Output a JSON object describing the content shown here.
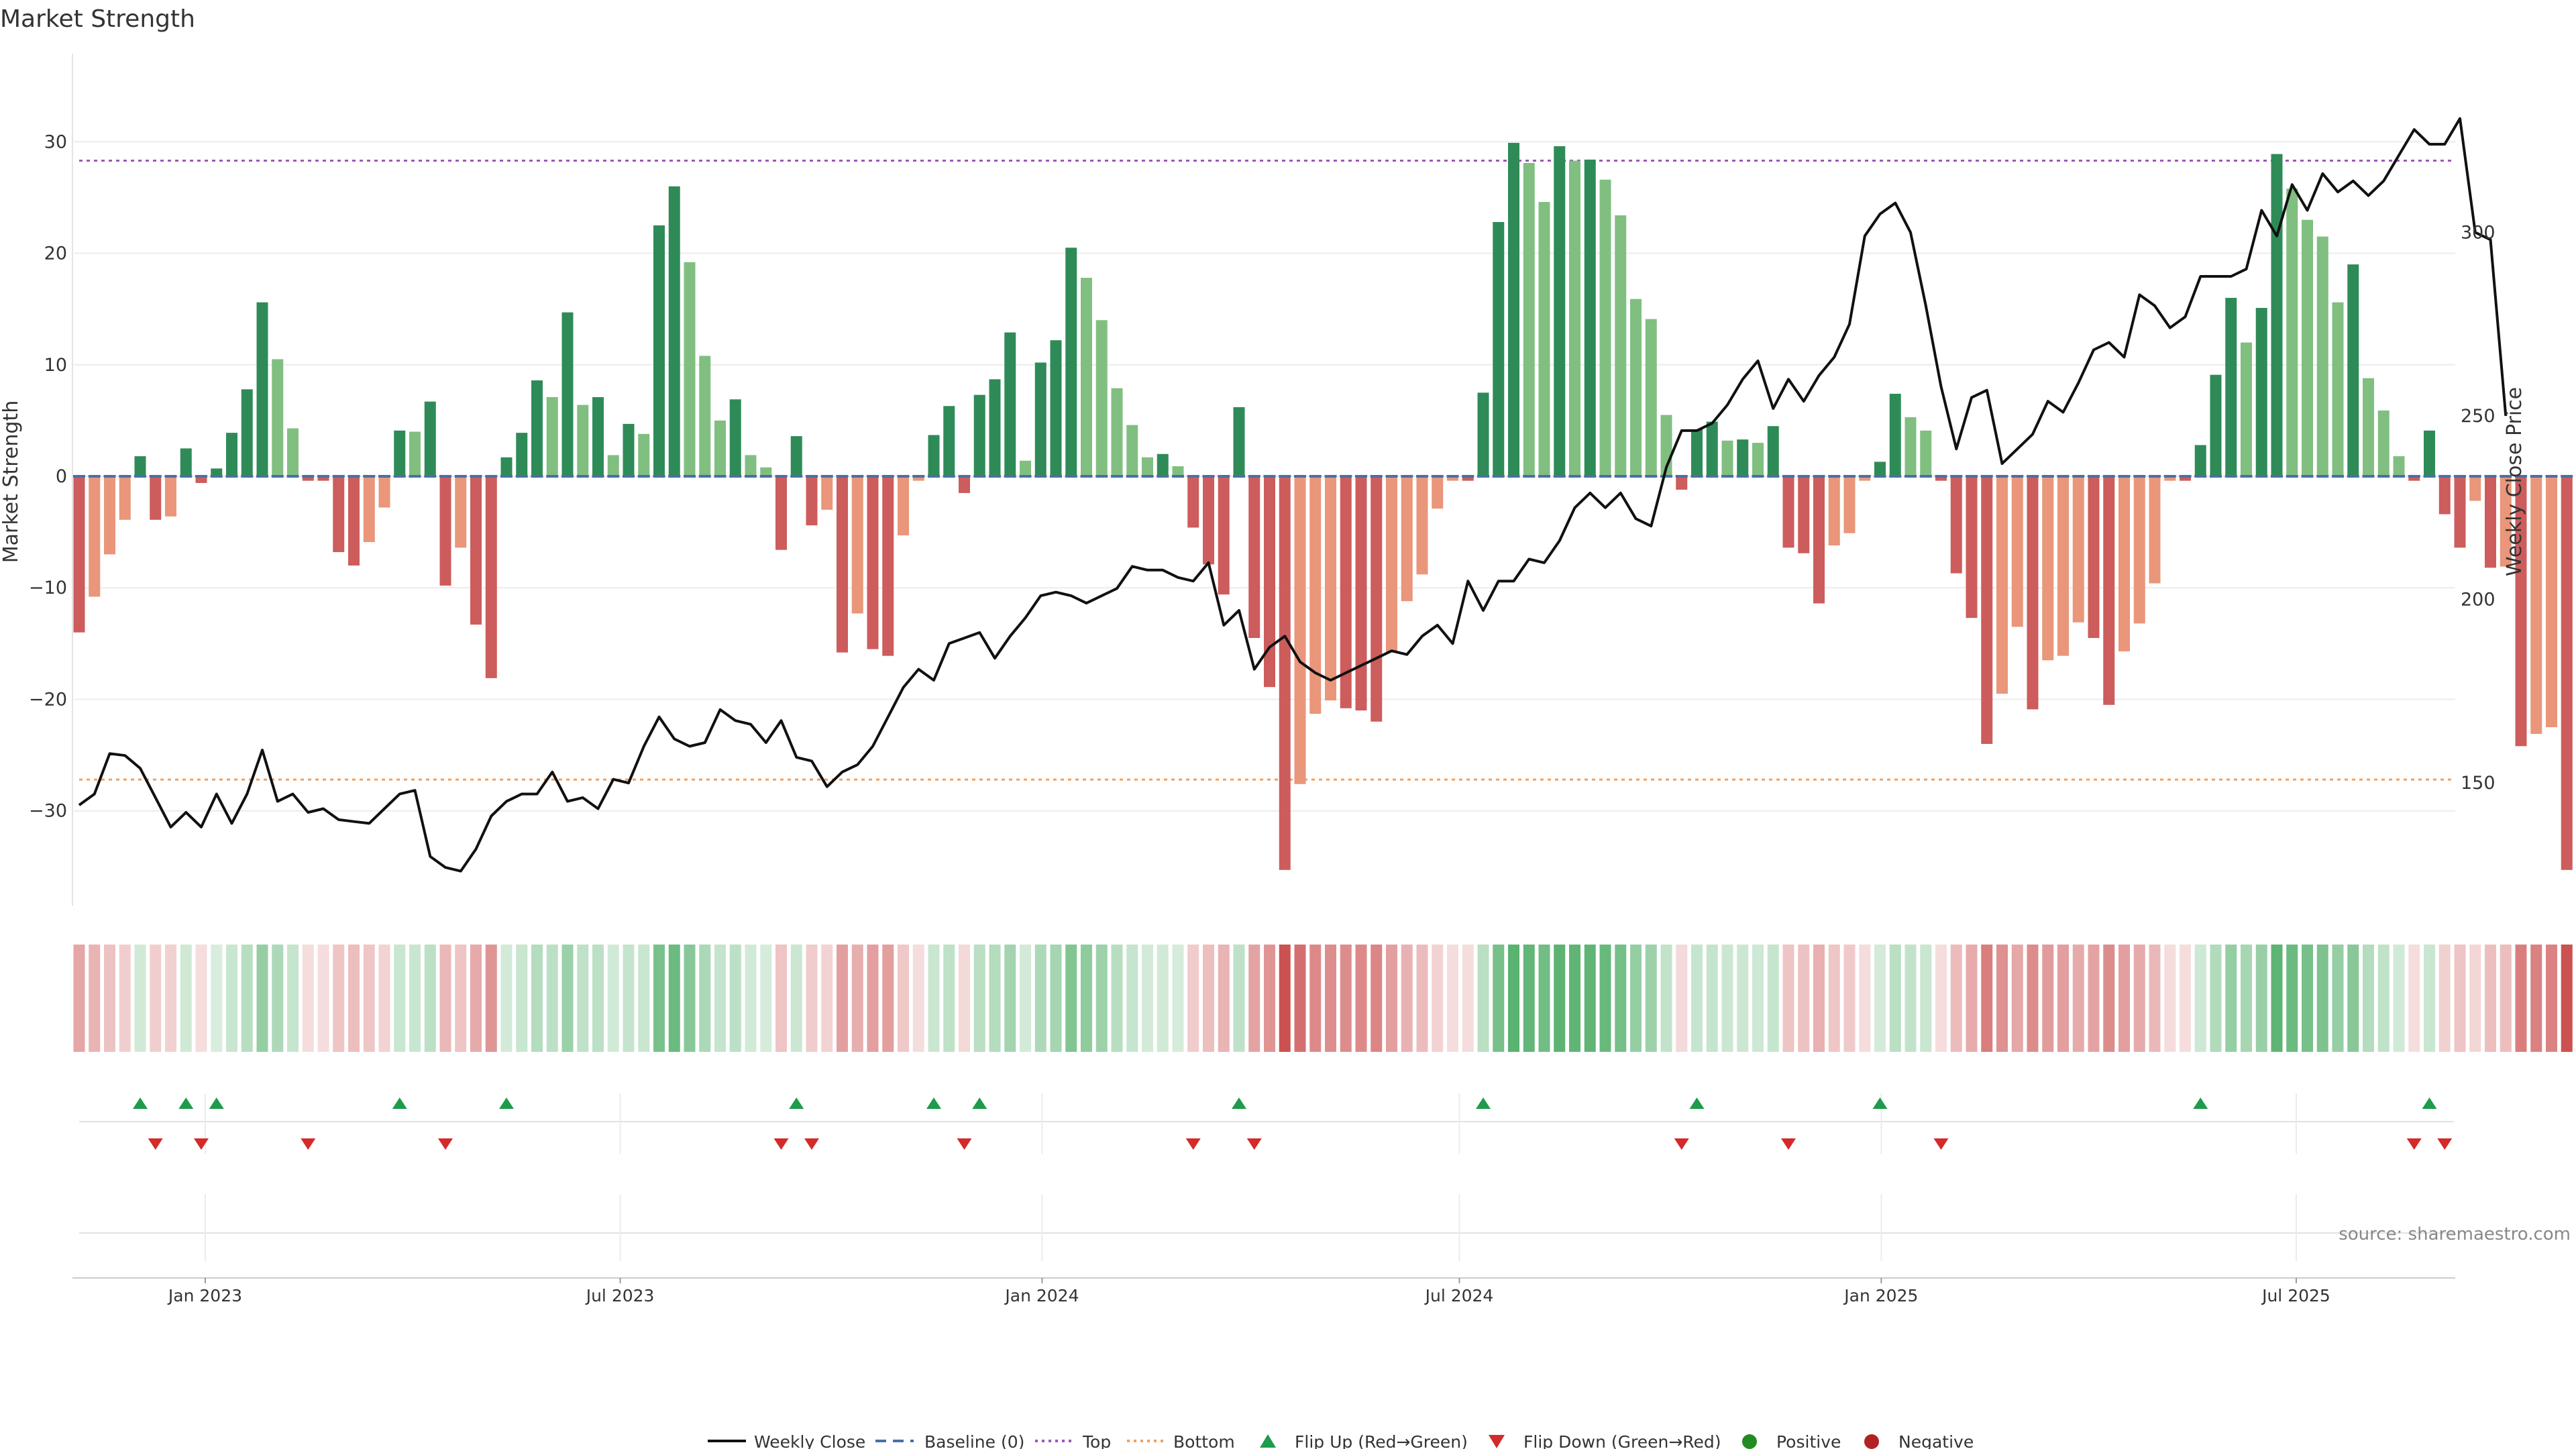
{
  "chart_data": {
    "type": "bar",
    "title": "Market Strength",
    "ylabel": "Market Strength",
    "y2label": "Weekly Close Price",
    "ylim": [
      -38.5,
      38.5
    ],
    "y2lim": [
      116.6,
      350.5
    ],
    "yticks": [
      -30,
      -20,
      -10,
      0,
      10,
      20,
      30
    ],
    "y2ticks": [
      150,
      200,
      250,
      300
    ],
    "top_threshold": 28.3,
    "bottom_threshold": -27.2,
    "date_range": [
      "2022-11-07",
      "2025-10-27"
    ],
    "x_ticks": [
      {
        "label": "Jan 2023",
        "date": "2023-01-01"
      },
      {
        "label": "Jul 2023",
        "date": "2023-07-01"
      },
      {
        "label": "Jan 2024",
        "date": "2024-01-01"
      },
      {
        "label": "Jul 2024",
        "date": "2024-07-01"
      },
      {
        "label": "Jan 2025",
        "date": "2025-01-01"
      },
      {
        "label": "Jul 2025",
        "date": "2025-07-01"
      }
    ],
    "strength": [
      -14.0,
      -10.8,
      -7.0,
      -3.9,
      1.8,
      -3.9,
      -3.6,
      2.5,
      -0.6,
      0.7,
      3.9,
      7.8,
      15.6,
      10.5,
      4.3,
      -0.4,
      -0.4,
      -6.8,
      -8.0,
      -5.9,
      -2.8,
      4.1,
      4.0,
      6.7,
      -9.8,
      -6.4,
      -13.3,
      -18.1,
      1.7,
      3.9,
      8.6,
      7.1,
      14.7,
      6.4,
      7.1,
      1.9,
      4.7,
      3.8,
      22.5,
      26.0,
      19.2,
      10.8,
      5.0,
      6.9,
      1.9,
      0.8,
      -6.6,
      3.6,
      -4.4,
      -3.0,
      -15.8,
      -12.3,
      -15.5,
      -16.1,
      -5.3,
      -0.4,
      3.7,
      6.3,
      -1.5,
      7.3,
      8.7,
      12.9,
      1.4,
      10.2,
      12.2,
      20.5,
      17.8,
      14.0,
      7.9,
      4.6,
      1.7,
      2.0,
      0.9,
      -4.6,
      -7.9,
      -10.6,
      6.2,
      -14.5,
      -18.9,
      -35.3,
      -27.6,
      -21.3,
      -20.1,
      -20.8,
      -21.0,
      -22.0,
      -15.8,
      -11.2,
      -8.8,
      -2.9,
      -0.4,
      -0.4,
      7.5,
      22.8,
      29.9,
      28.1,
      24.6,
      29.6,
      28.3,
      28.4,
      26.6,
      23.4,
      15.9,
      14.1,
      5.5,
      -1.2,
      4.2,
      4.9,
      3.2,
      3.3,
      3.0,
      4.5,
      -6.4,
      -6.9,
      -11.4,
      -6.2,
      -5.1,
      -0.4,
      1.3,
      7.4,
      5.3,
      4.1,
      -0.4,
      -8.7,
      -12.7,
      -24.0,
      -19.5,
      -13.5,
      -20.9,
      -16.5,
      -16.1,
      -13.1,
      -14.5,
      -20.5,
      -15.7,
      -13.2,
      -9.6,
      -0.4,
      -0.4,
      2.8,
      9.1,
      16.0,
      12.0,
      15.1,
      28.9,
      25.8,
      23.0,
      21.5,
      15.6,
      19.0,
      8.8,
      5.9,
      1.8,
      -0.4,
      4.1,
      -3.4,
      -6.4,
      -2.2,
      -8.2,
      -8.1,
      -24.2,
      -23.1,
      -22.5,
      -35.3
    ],
    "weekly_close": [
      144,
      147,
      158,
      157.5,
      154,
      146,
      138,
      142,
      138,
      147,
      139,
      147,
      159,
      145,
      147,
      142,
      143,
      140,
      139.5,
      139,
      143,
      147,
      148,
      130,
      127,
      126,
      132,
      141,
      145,
      147,
      147,
      153,
      145,
      146,
      143,
      151,
      150,
      160,
      168,
      162,
      160,
      161,
      170,
      167,
      166,
      161,
      167,
      157,
      156,
      149,
      153,
      155,
      160,
      168,
      176,
      181,
      178,
      188,
      189.5,
      191,
      184,
      190,
      195,
      201,
      202,
      201,
      199,
      201,
      203,
      209,
      208,
      208,
      206,
      205,
      210,
      193,
      197,
      181,
      187,
      190,
      183,
      180,
      178,
      180,
      182,
      184,
      186,
      185,
      190,
      193,
      188,
      205,
      197,
      205,
      205,
      211,
      210,
      216,
      225,
      229,
      225,
      229,
      222,
      220,
      236,
      246,
      246,
      248,
      253,
      260,
      265,
      252,
      260,
      254,
      261,
      266,
      275,
      299,
      305,
      308,
      300,
      280,
      258,
      241,
      255,
      257,
      237,
      241,
      245,
      254,
      251,
      259,
      268,
      270,
      266,
      283,
      280,
      274,
      277,
      288,
      288,
      288,
      290,
      306,
      299,
      313,
      306,
      316,
      311,
      314,
      310,
      314,
      321,
      328,
      324,
      324,
      331,
      300,
      298,
      250
    ]
  },
  "legend": {
    "weekly_close": "Weekly Close",
    "baseline": "Baseline (0)",
    "top": "Top",
    "bottom": "Bottom",
    "flip_up": "Flip Up (Red→Green)",
    "flip_down": "Flip Down (Green→Red)",
    "positive": "Positive",
    "negative": "Negative"
  },
  "source": "source: sharemaestro.com",
  "colors": {
    "green_strong": "#2e8b57",
    "green_light": "#80bf80",
    "red_strong": "#cd5c5c",
    "red_light": "#e9967a",
    "line": "#111111",
    "top_line": "#9b59b6",
    "bottom_line": "#f0a060",
    "baseline": "#4a6fa5",
    "flip_up": "#1e9b4b",
    "flip_down": "#d42a2a",
    "positive_dot": "#228b22",
    "negative_dot": "#b22222"
  }
}
